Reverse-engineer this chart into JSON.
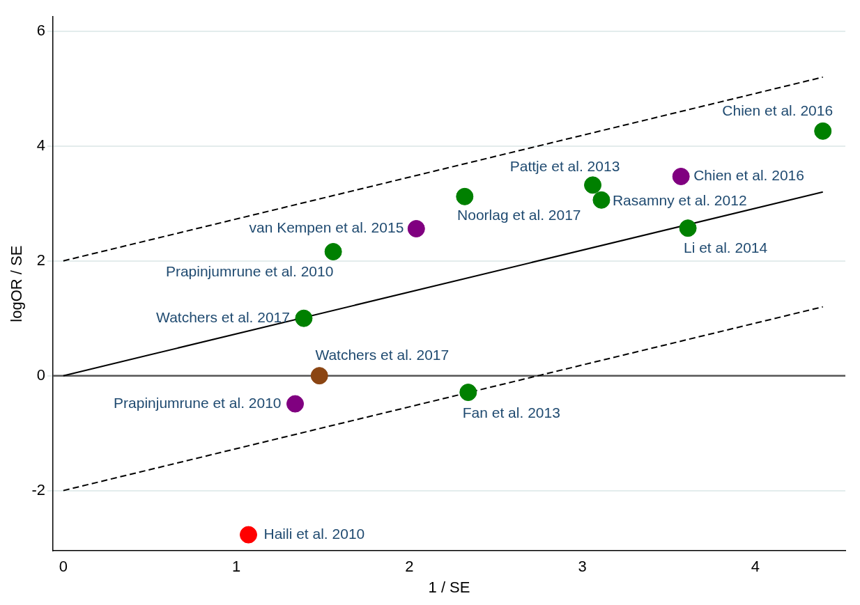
{
  "chart_data": {
    "type": "scatter",
    "xlabel": "1 / SE",
    "ylabel": "logOR / SE",
    "xlim": [
      -0.06,
      4.52
    ],
    "ylim": [
      -3.05,
      6.25
    ],
    "xticks": [
      0,
      1,
      2,
      3,
      4
    ],
    "yticks": [
      -2,
      0,
      2,
      4,
      6
    ],
    "grid": "y",
    "legend": false,
    "series": [
      {
        "marker": "circle",
        "x": [
          4.39,
          3.57,
          3.06,
          3.11,
          2.32,
          2.04,
          3.61,
          1.56,
          1.39,
          1.48,
          1.34,
          2.34,
          1.07
        ],
        "values": [
          4.26,
          3.47,
          3.32,
          3.06,
          3.12,
          2.56,
          2.57,
          2.16,
          1.0,
          0.0,
          -0.49,
          -0.29,
          -2.77
        ],
        "colors": [
          "#008000",
          "#800080",
          "#008000",
          "#008000",
          "#008000",
          "#800080",
          "#008000",
          "#008000",
          "#008000",
          "#8b4513",
          "#800080",
          "#008000",
          "#ff0000"
        ]
      },
      {
        "type": "line",
        "x": [
          0,
          4.39
        ],
        "values": [
          0,
          3.2
        ],
        "color": "#000000",
        "line_style": "solid"
      },
      {
        "type": "line",
        "x": [
          0,
          4.39
        ],
        "values": [
          2,
          5.2
        ],
        "color": "#000000",
        "line_style": "dashed"
      },
      {
        "type": "line",
        "x": [
          0,
          4.39
        ],
        "values": [
          -2,
          1.2
        ],
        "color": "#000000",
        "line_style": "dashed"
      }
    ],
    "ref_lines": [
      {
        "axis": "y",
        "value": 0,
        "color": "#555555",
        "line_style": "solid"
      }
    ],
    "annotations": [
      {
        "text": "Chien et al. 2016",
        "x": 4.39,
        "y": 4.26
      },
      {
        "text": "Chien et al. 2016",
        "x": 3.57,
        "y": 3.47
      },
      {
        "text": "Pattje et al. 2013",
        "x": 3.06,
        "y": 3.32
      },
      {
        "text": "Rasamny et al. 2012",
        "x": 3.11,
        "y": 3.06
      },
      {
        "text": "Noorlag et al. 2017",
        "x": 2.32,
        "y": 3.12
      },
      {
        "text": "van Kempen et al. 2015",
        "x": 2.04,
        "y": 2.56
      },
      {
        "text": "Li et al. 2014",
        "x": 3.61,
        "y": 2.57
      },
      {
        "text": "Prapinjumrune et al. 2010",
        "x": 1.56,
        "y": 2.16
      },
      {
        "text": "Watchers et al. 2017",
        "x": 1.39,
        "y": 1.0
      },
      {
        "text": "Watchers et al. 2017",
        "x": 1.48,
        "y": 0.0
      },
      {
        "text": "Prapinjumrune et al. 2010",
        "x": 1.34,
        "y": -0.49
      },
      {
        "text": "Fan et al. 2013",
        "x": 2.34,
        "y": -0.29
      },
      {
        "text": "Haili et al. 2010",
        "x": 1.07,
        "y": -2.77
      }
    ]
  }
}
